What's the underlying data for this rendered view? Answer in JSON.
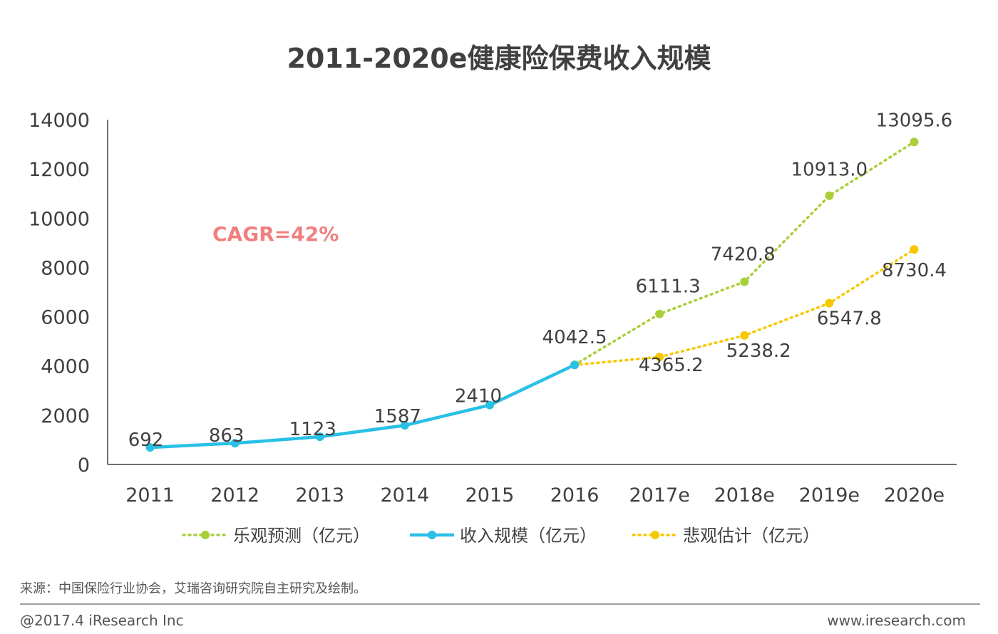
{
  "chart_data": {
    "type": "line",
    "title": "2011-2020e健康险保费收入规模",
    "categories": [
      "2011",
      "2012",
      "2013",
      "2014",
      "2015",
      "2016",
      "2017e",
      "2018e",
      "2019e",
      "2020e"
    ],
    "ylim": [
      0,
      14000
    ],
    "yticks": [
      0,
      2000,
      4000,
      6000,
      8000,
      10000,
      12000,
      14000
    ],
    "grid": false,
    "legend_position": "bottom",
    "annotation": "CAGR=42%",
    "series": [
      {
        "name": "乐观预测（亿元）",
        "style": "dotted",
        "color": "#a9cf38",
        "x": [
          "2016",
          "2017e",
          "2018e",
          "2019e",
          "2020e"
        ],
        "values": [
          4042.5,
          6111.3,
          7420.8,
          10913.0,
          13095.6
        ],
        "labels": [
          "",
          "6111.3",
          "7420.8",
          "10913.0",
          "13095.6"
        ]
      },
      {
        "name": "收入规模（亿元）",
        "style": "solid",
        "color": "#29c0e6",
        "x": [
          "2011",
          "2012",
          "2013",
          "2014",
          "2015",
          "2016"
        ],
        "values": [
          692,
          863,
          1123,
          1587,
          2410,
          4042.5
        ],
        "labels": [
          "692",
          "863",
          "1123",
          "1587",
          "2410",
          "4042.5"
        ]
      },
      {
        "name": "悲观估计（亿元）",
        "style": "dotted",
        "color": "#f7c800",
        "x": [
          "2016",
          "2017e",
          "2018e",
          "2019e",
          "2020e"
        ],
        "values": [
          4042.5,
          4365.2,
          5238.2,
          6547.8,
          8730.4
        ],
        "labels": [
          "",
          "4365.2",
          "5238.2",
          "6547.8",
          "8730.4"
        ]
      }
    ]
  },
  "colors": {
    "cagr": "#f08080",
    "axis": "#404040",
    "divider": "#808080"
  },
  "source": "来源：中国保险行业协会，艾瑞咨询研究院自主研究及绘制。",
  "footer": {
    "left": "@2017.4 iResearch Inc",
    "right": "www.iresearch.com"
  }
}
